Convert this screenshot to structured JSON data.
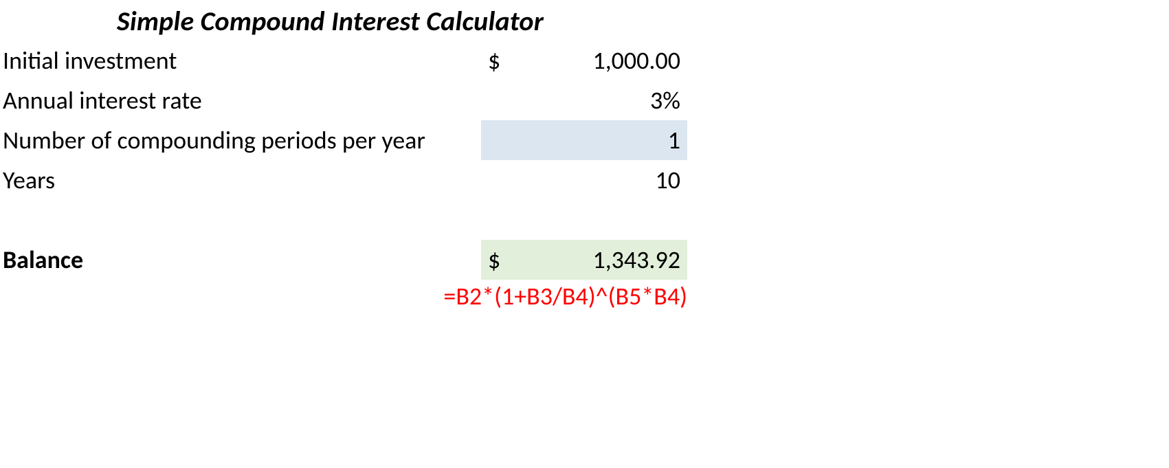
{
  "title": "Simple Compound Interest Calculator",
  "rows": {
    "initial": {
      "label": "Initial investment",
      "symbol": "$",
      "value": "1,000.00"
    },
    "rate": {
      "label": "Annual interest rate",
      "value": "3%"
    },
    "periods": {
      "label": "Number of compounding periods per year",
      "value": "1",
      "highlight_color": "#dce6f1"
    },
    "years": {
      "label": "Years",
      "value": "10"
    },
    "balance": {
      "label": "Balance",
      "symbol": "$",
      "value": "1,343.92",
      "highlight_color": "#e2efda"
    }
  },
  "formula": {
    "text": "=B2*(1+B3/B4)^(B5*B4)",
    "color": "#ff0000"
  },
  "fonts": {
    "title_pt": 30,
    "body_pt": 27
  },
  "colors": {
    "background": "#ffffff",
    "text": "#000000"
  }
}
